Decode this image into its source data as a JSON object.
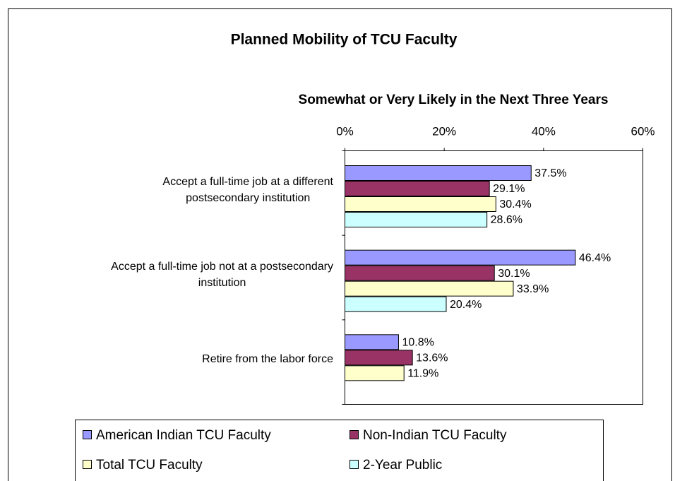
{
  "chart_data": {
    "type": "hbar",
    "title": "Planned Mobility of TCU Faculty",
    "subtitle": "Somewhat or Very Likely in the Next Three Years",
    "categories": [
      [
        "Accept a full-time job at a different",
        "postsecondary institution"
      ],
      [
        "Accept a full-time job not at  a postsecondary",
        "institution"
      ],
      [
        "Retire from the labor force"
      ]
    ],
    "series": [
      {
        "name": "American Indian TCU Faculty",
        "color": "#9999ff",
        "values": [
          37.5,
          46.4,
          10.8
        ],
        "value_labels": [
          "37.5%",
          "46.4%",
          "10.8%"
        ]
      },
      {
        "name": "Non-Indian TCU Faculty",
        "color": "#993366",
        "values": [
          29.1,
          30.1,
          13.6
        ],
        "value_labels": [
          "29.1%",
          "30.1%",
          "13.6%"
        ]
      },
      {
        "name": "Total TCU Faculty",
        "color": "#ffffcc",
        "values": [
          30.4,
          33.9,
          11.9
        ],
        "value_labels": [
          "30.4%",
          "33.9%",
          "11.9%"
        ]
      },
      {
        "name": "2-Year Public",
        "color": "#ccffff",
        "values": [
          28.6,
          20.4,
          null
        ],
        "value_labels": [
          "28.6%",
          "20.4%",
          null
        ]
      }
    ],
    "xlim": [
      0,
      60
    ],
    "xticks": [
      {
        "value": 0,
        "label": "0%"
      },
      {
        "value": 20,
        "label": "20%"
      },
      {
        "value": 40,
        "label": "40%"
      },
      {
        "value": 60,
        "label": "60%"
      }
    ],
    "legend": "bottom"
  }
}
